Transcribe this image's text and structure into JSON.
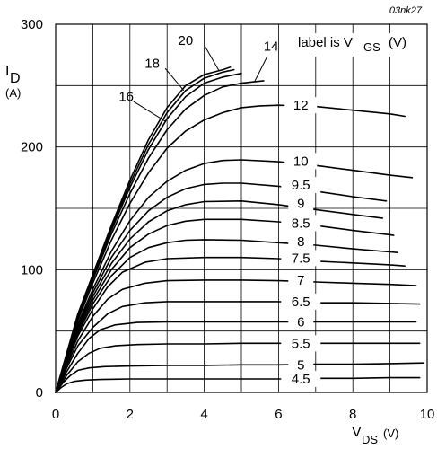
{
  "figure_code": "03nk27",
  "chart_data": {
    "type": "line",
    "title": "",
    "xlabel": "V",
    "xlabel_sub": "DS",
    "xlabel_unit": "(V)",
    "ylabel": "I",
    "ylabel_sub": "D",
    "ylabel_unit": "(A)",
    "annotation": {
      "prefix": "label is V",
      "sub": "GS",
      "suffix": "(V)"
    },
    "xlim": [
      0,
      10
    ],
    "ylim": [
      0,
      300
    ],
    "grid": true,
    "x_ticks": [
      0,
      2,
      4,
      6,
      8,
      10
    ],
    "y_ticks": [
      0,
      100,
      200,
      300
    ],
    "series": [
      {
        "name": "4.5",
        "points": [
          [
            0,
            0
          ],
          [
            0.15,
            4
          ],
          [
            0.3,
            7
          ],
          [
            0.5,
            9
          ],
          [
            0.8,
            10
          ],
          [
            1.2,
            10.5
          ],
          [
            2,
            11
          ],
          [
            3,
            11
          ],
          [
            4,
            11
          ],
          [
            5,
            11
          ],
          [
            6,
            11
          ],
          [
            7,
            11.5
          ],
          [
            8,
            11.5
          ],
          [
            9,
            12
          ],
          [
            9.8,
            12
          ]
        ]
      },
      {
        "name": "5",
        "points": [
          [
            0,
            0
          ],
          [
            0.2,
            8
          ],
          [
            0.4,
            14
          ],
          [
            0.6,
            18
          ],
          [
            0.9,
            20
          ],
          [
            1.3,
            21
          ],
          [
            2,
            21.5
          ],
          [
            3,
            22
          ],
          [
            4,
            22
          ],
          [
            5,
            22.5
          ],
          [
            6,
            22.5
          ],
          [
            7,
            23
          ],
          [
            8,
            23
          ],
          [
            9,
            23.5
          ],
          [
            9.9,
            24
          ]
        ]
      },
      {
        "name": "5.5",
        "points": [
          [
            0,
            0
          ],
          [
            0.3,
            14
          ],
          [
            0.6,
            25
          ],
          [
            0.9,
            32
          ],
          [
            1.2,
            36
          ],
          [
            1.6,
            38
          ],
          [
            2.2,
            39
          ],
          [
            3,
            39.5
          ],
          [
            4,
            39.5
          ],
          [
            5,
            40
          ],
          [
            6,
            40
          ],
          [
            7,
            40
          ],
          [
            8,
            40
          ],
          [
            9,
            40
          ],
          [
            9.8,
            40
          ]
        ]
      },
      {
        "name": "6",
        "points": [
          [
            0,
            0
          ],
          [
            0.3,
            17
          ],
          [
            0.6,
            32
          ],
          [
            0.9,
            44
          ],
          [
            1.2,
            51
          ],
          [
            1.6,
            55
          ],
          [
            2.2,
            57
          ],
          [
            3,
            57.5
          ],
          [
            4,
            57.5
          ],
          [
            5,
            57.5
          ],
          [
            6,
            57.5
          ],
          [
            7,
            57.5
          ],
          [
            8,
            57.5
          ],
          [
            9,
            57.5
          ],
          [
            9.7,
            57.5
          ]
        ]
      },
      {
        "name": "6.5",
        "points": [
          [
            0,
            0
          ],
          [
            0.3,
            20
          ],
          [
            0.6,
            38
          ],
          [
            1,
            53
          ],
          [
            1.4,
            64
          ],
          [
            1.8,
            70
          ],
          [
            2.4,
            73
          ],
          [
            3,
            74
          ],
          [
            4,
            74
          ],
          [
            5,
            74
          ],
          [
            6,
            74
          ],
          [
            7,
            73
          ],
          [
            8,
            73
          ],
          [
            9,
            72.5
          ],
          [
            9.8,
            72
          ]
        ]
      },
      {
        "name": "7",
        "points": [
          [
            0,
            0
          ],
          [
            0.3,
            22
          ],
          [
            0.6,
            42
          ],
          [
            1,
            62
          ],
          [
            1.4,
            76
          ],
          [
            1.8,
            84
          ],
          [
            2.4,
            89
          ],
          [
            3,
            91
          ],
          [
            4,
            91.5
          ],
          [
            5,
            91.5
          ],
          [
            6,
            91
          ],
          [
            7,
            90
          ],
          [
            8,
            89
          ],
          [
            9,
            88
          ],
          [
            9.7,
            87
          ]
        ]
      },
      {
        "name": "7.5",
        "points": [
          [
            0,
            0
          ],
          [
            0.3,
            24
          ],
          [
            0.6,
            46
          ],
          [
            1,
            68
          ],
          [
            1.4,
            86
          ],
          [
            1.8,
            98
          ],
          [
            2.4,
            106
          ],
          [
            3,
            109
          ],
          [
            4,
            110
          ],
          [
            5,
            110
          ],
          [
            6,
            109
          ],
          [
            7,
            107
          ],
          [
            8,
            105.5
          ],
          [
            9,
            104
          ],
          [
            9.4,
            103
          ]
        ]
      },
      {
        "name": "8",
        "points": [
          [
            0,
            0
          ],
          [
            0.3,
            25
          ],
          [
            0.6,
            48
          ],
          [
            1,
            72
          ],
          [
            1.5,
            95
          ],
          [
            2,
            110
          ],
          [
            2.5,
            118
          ],
          [
            3,
            122
          ],
          [
            3.5,
            124
          ],
          [
            4,
            124.5
          ],
          [
            5,
            124
          ],
          [
            6,
            122
          ],
          [
            7,
            120
          ],
          [
            8,
            117
          ],
          [
            9,
            114.5
          ],
          [
            9.2,
            114
          ]
        ]
      },
      {
        "name": "8.5",
        "points": [
          [
            0,
            0
          ],
          [
            0.3,
            26
          ],
          [
            0.6,
            50
          ],
          [
            1,
            75
          ],
          [
            1.5,
            100
          ],
          [
            2,
            118
          ],
          [
            2.5,
            129
          ],
          [
            3,
            136
          ],
          [
            3.5,
            139.5
          ],
          [
            4,
            141
          ],
          [
            5,
            141
          ],
          [
            6,
            139
          ],
          [
            7,
            136
          ],
          [
            8,
            132
          ],
          [
            9,
            128.5
          ],
          [
            9.1,
            128
          ]
        ]
      },
      {
        "name": "9",
        "points": [
          [
            0,
            0
          ],
          [
            0.3,
            27
          ],
          [
            0.6,
            52
          ],
          [
            1,
            78
          ],
          [
            1.5,
            105
          ],
          [
            2,
            125
          ],
          [
            2.5,
            139
          ],
          [
            3,
            148
          ],
          [
            3.5,
            153
          ],
          [
            4,
            155.5
          ],
          [
            5,
            156
          ],
          [
            6,
            153
          ],
          [
            7,
            149
          ],
          [
            8,
            145
          ],
          [
            8.8,
            142
          ]
        ]
      },
      {
        "name": "9.5",
        "points": [
          [
            0,
            0
          ],
          [
            0.3,
            28
          ],
          [
            0.6,
            54
          ],
          [
            1,
            81
          ],
          [
            1.5,
            110
          ],
          [
            2,
            132
          ],
          [
            2.5,
            148
          ],
          [
            3,
            159
          ],
          [
            3.5,
            166
          ],
          [
            4,
            169.5
          ],
          [
            4.5,
            170.5
          ],
          [
            5,
            170.5
          ],
          [
            6,
            168
          ],
          [
            7,
            164
          ],
          [
            8,
            159.5
          ],
          [
            8.9,
            156
          ]
        ]
      },
      {
        "name": "10",
        "points": [
          [
            0,
            0
          ],
          [
            0.3,
            29
          ],
          [
            0.6,
            56
          ],
          [
            1,
            84
          ],
          [
            1.5,
            115
          ],
          [
            2,
            140
          ],
          [
            2.5,
            159
          ],
          [
            3,
            172
          ],
          [
            3.5,
            181
          ],
          [
            4,
            186.5
          ],
          [
            4.5,
            189
          ],
          [
            5,
            189.5
          ],
          [
            6,
            188
          ],
          [
            7,
            185
          ],
          [
            8,
            181
          ],
          [
            9,
            177
          ],
          [
            9.6,
            175
          ]
        ]
      },
      {
        "name": "12",
        "points": [
          [
            0,
            0
          ],
          [
            0.3,
            30
          ],
          [
            0.6,
            59
          ],
          [
            1,
            89
          ],
          [
            1.5,
            124
          ],
          [
            2,
            154
          ],
          [
            2.5,
            179
          ],
          [
            3,
            199
          ],
          [
            3.5,
            213
          ],
          [
            4,
            222
          ],
          [
            4.5,
            228
          ],
          [
            5,
            232
          ],
          [
            5.5,
            233.5
          ],
          [
            6,
            234
          ],
          [
            7,
            233
          ],
          [
            8,
            230
          ],
          [
            9,
            227
          ],
          [
            9.4,
            225
          ]
        ]
      },
      {
        "name": "14",
        "points": [
          [
            0,
            0
          ],
          [
            0.3,
            31
          ],
          [
            0.6,
            61
          ],
          [
            1,
            92
          ],
          [
            1.5,
            129
          ],
          [
            2,
            162
          ],
          [
            2.5,
            191
          ],
          [
            3,
            214
          ],
          [
            3.5,
            231
          ],
          [
            4,
            242
          ],
          [
            4.5,
            249
          ],
          [
            5,
            252
          ],
          [
            5.6,
            254
          ]
        ]
      },
      {
        "name": "16",
        "points": [
          [
            0,
            0
          ],
          [
            0.3,
            31
          ],
          [
            0.6,
            62
          ],
          [
            1,
            94
          ],
          [
            1.5,
            132
          ],
          [
            2,
            167
          ],
          [
            2.5,
            198
          ],
          [
            3,
            223
          ],
          [
            3.5,
            241
          ],
          [
            4,
            252
          ],
          [
            4.5,
            257
          ],
          [
            5,
            260
          ]
        ]
      },
      {
        "name": "18",
        "points": [
          [
            0,
            0
          ],
          [
            0.3,
            32
          ],
          [
            0.6,
            63
          ],
          [
            1,
            95
          ],
          [
            1.5,
            134
          ],
          [
            2,
            170
          ],
          [
            2.5,
            202
          ],
          [
            3,
            228
          ],
          [
            3.5,
            246
          ],
          [
            4,
            256
          ],
          [
            4.5,
            261
          ],
          [
            4.8,
            263
          ]
        ]
      },
      {
        "name": "20",
        "points": [
          [
            0,
            0
          ],
          [
            0.3,
            32
          ],
          [
            0.6,
            64
          ],
          [
            1,
            96
          ],
          [
            1.5,
            136
          ],
          [
            2,
            173
          ],
          [
            2.5,
            206
          ],
          [
            3,
            232
          ],
          [
            3.5,
            250
          ],
          [
            4,
            259
          ],
          [
            4.5,
            263
          ],
          [
            4.7,
            265
          ]
        ]
      }
    ]
  }
}
